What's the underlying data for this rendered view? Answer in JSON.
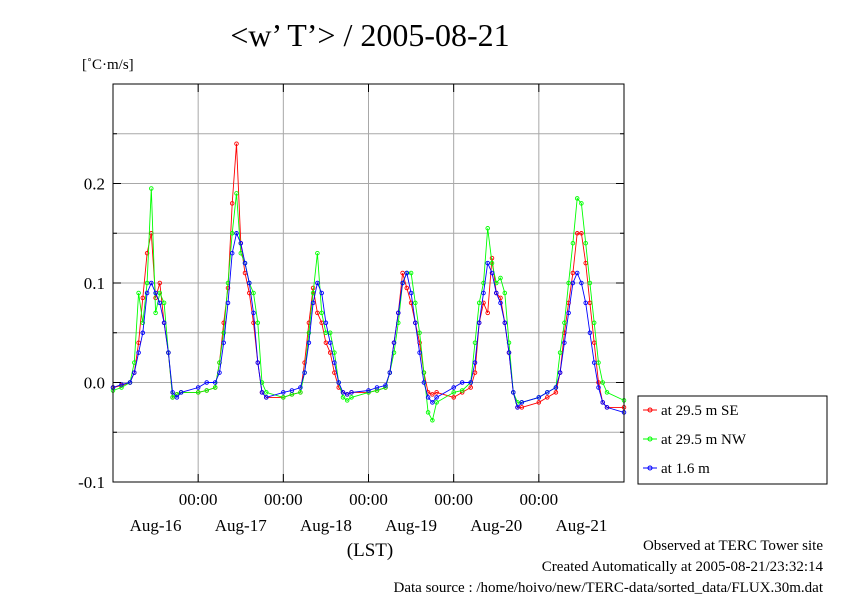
{
  "chart_data": {
    "type": "line",
    "title": "<w’ T’> / 2005-08-21",
    "ylabel": "[˚C·m/s]",
    "xlabel": "(LST)",
    "ylim": [
      -0.1,
      0.3
    ],
    "yticks": [
      "0.2",
      "0.1",
      "0.0",
      "-0.1"
    ],
    "ytick_values": [
      0.2,
      0.1,
      0.0,
      -0.1
    ],
    "xlim": [
      0,
      6
    ],
    "time_tick_label": "00:00",
    "time_tick_values": [
      1,
      2,
      3,
      4,
      5
    ],
    "day_labels": [
      "Aug-16",
      "Aug-17",
      "Aug-18",
      "Aug-19",
      "Aug-20",
      "Aug-21"
    ],
    "day_label_values": [
      0.5,
      1.5,
      2.5,
      3.5,
      4.5,
      5.5
    ],
    "grid": true,
    "legend_position": "right",
    "series": [
      {
        "name": "at 29.5 m SE",
        "color": "#ff0000",
        "x": [
          0.0,
          0.1,
          0.2,
          0.25,
          0.3,
          0.35,
          0.4,
          0.45,
          0.5,
          0.55,
          0.6,
          0.65,
          0.7,
          0.75,
          0.8,
          1.0,
          1.1,
          1.2,
          1.25,
          1.3,
          1.35,
          1.4,
          1.45,
          1.5,
          1.55,
          1.6,
          1.65,
          1.7,
          1.75,
          1.8,
          2.0,
          2.1,
          2.2,
          2.25,
          2.3,
          2.35,
          2.4,
          2.45,
          2.5,
          2.55,
          2.6,
          2.65,
          2.7,
          2.75,
          2.8,
          3.0,
          3.1,
          3.2,
          3.25,
          3.3,
          3.35,
          3.4,
          3.45,
          3.5,
          3.55,
          3.6,
          3.65,
          3.7,
          3.75,
          3.8,
          4.0,
          4.1,
          4.2,
          4.25,
          4.3,
          4.35,
          4.4,
          4.45,
          4.5,
          4.55,
          4.6,
          4.65,
          4.7,
          4.75,
          4.8,
          5.0,
          5.1,
          5.2,
          5.25,
          5.3,
          5.35,
          5.4,
          5.45,
          5.5,
          5.55,
          5.6,
          5.65,
          5.7,
          5.75,
          5.8,
          6.0
        ],
        "y": [
          -0.005,
          -0.003,
          0.0,
          0.01,
          0.04,
          0.085,
          0.13,
          0.15,
          0.085,
          0.1,
          0.06,
          0.03,
          -0.015,
          -0.012,
          -0.01,
          -0.01,
          -0.008,
          -0.005,
          0.02,
          0.06,
          0.095,
          0.18,
          0.24,
          0.14,
          0.11,
          0.09,
          0.06,
          0.02,
          -0.01,
          -0.015,
          -0.015,
          -0.012,
          -0.01,
          0.02,
          0.06,
          0.095,
          0.07,
          0.06,
          0.04,
          0.03,
          0.01,
          -0.005,
          -0.01,
          -0.012,
          -0.01,
          -0.01,
          -0.008,
          -0.005,
          0.01,
          0.04,
          0.07,
          0.11,
          0.095,
          0.08,
          0.06,
          0.04,
          0.01,
          -0.01,
          -0.012,
          -0.01,
          -0.015,
          -0.01,
          -0.005,
          0.01,
          0.06,
          0.08,
          0.07,
          0.125,
          0.09,
          0.085,
          0.06,
          0.03,
          -0.01,
          -0.025,
          -0.025,
          -0.02,
          -0.015,
          -0.01,
          0.01,
          0.05,
          0.08,
          0.11,
          0.15,
          0.15,
          0.12,
          0.08,
          0.04,
          0.0,
          -0.02,
          -0.025,
          -0.025
        ]
      },
      {
        "name": "at 29.5 m NW",
        "color": "#00ff00",
        "x": [
          0.0,
          0.1,
          0.2,
          0.25,
          0.3,
          0.35,
          0.4,
          0.45,
          0.5,
          0.55,
          0.6,
          0.65,
          0.7,
          0.75,
          0.8,
          1.0,
          1.1,
          1.2,
          1.25,
          1.3,
          1.35,
          1.4,
          1.45,
          1.5,
          1.55,
          1.6,
          1.65,
          1.7,
          1.75,
          1.8,
          2.0,
          2.1,
          2.2,
          2.25,
          2.3,
          2.35,
          2.4,
          2.45,
          2.5,
          2.55,
          2.6,
          2.65,
          2.7,
          2.75,
          2.8,
          3.0,
          3.1,
          3.2,
          3.25,
          3.3,
          3.35,
          3.4,
          3.45,
          3.5,
          3.55,
          3.6,
          3.65,
          3.7,
          3.75,
          3.8,
          4.0,
          4.1,
          4.2,
          4.25,
          4.3,
          4.35,
          4.4,
          4.45,
          4.5,
          4.55,
          4.6,
          4.65,
          4.7,
          4.75,
          4.8,
          5.0,
          5.1,
          5.2,
          5.25,
          5.3,
          5.35,
          5.4,
          5.45,
          5.5,
          5.55,
          5.6,
          5.65,
          5.7,
          5.75,
          5.8,
          6.0
        ],
        "y": [
          -0.008,
          -0.005,
          0.0,
          0.02,
          0.09,
          0.06,
          0.1,
          0.195,
          0.07,
          0.09,
          0.08,
          0.03,
          -0.015,
          -0.012,
          -0.01,
          -0.01,
          -0.008,
          -0.005,
          0.02,
          0.05,
          0.1,
          0.15,
          0.19,
          0.13,
          0.12,
          0.1,
          0.09,
          0.06,
          0.0,
          -0.01,
          -0.015,
          -0.012,
          -0.01,
          0.01,
          0.05,
          0.09,
          0.13,
          0.07,
          0.05,
          0.05,
          0.03,
          0.0,
          -0.015,
          -0.018,
          -0.015,
          -0.01,
          -0.008,
          -0.005,
          0.01,
          0.03,
          0.06,
          0.1,
          0.11,
          0.11,
          0.08,
          0.05,
          0.01,
          -0.03,
          -0.038,
          -0.02,
          -0.01,
          -0.008,
          0.0,
          0.04,
          0.08,
          0.1,
          0.155,
          0.12,
          0.1,
          0.105,
          0.09,
          0.04,
          -0.01,
          -0.02,
          -0.02,
          -0.015,
          -0.01,
          -0.005,
          0.03,
          0.06,
          0.1,
          0.14,
          0.185,
          0.18,
          0.14,
          0.1,
          0.06,
          0.02,
          0.0,
          -0.01,
          -0.018
        ]
      },
      {
        "name": "at 1.6 m",
        "color": "#0000ff",
        "x": [
          0.0,
          0.1,
          0.2,
          0.25,
          0.3,
          0.35,
          0.4,
          0.45,
          0.5,
          0.55,
          0.6,
          0.65,
          0.7,
          0.75,
          0.8,
          1.0,
          1.1,
          1.2,
          1.25,
          1.3,
          1.35,
          1.4,
          1.45,
          1.5,
          1.55,
          1.6,
          1.65,
          1.7,
          1.75,
          1.8,
          2.0,
          2.1,
          2.2,
          2.25,
          2.3,
          2.35,
          2.4,
          2.45,
          2.5,
          2.55,
          2.6,
          2.65,
          2.7,
          2.75,
          2.8,
          3.0,
          3.1,
          3.2,
          3.25,
          3.3,
          3.35,
          3.4,
          3.45,
          3.5,
          3.55,
          3.6,
          3.65,
          3.7,
          3.75,
          3.8,
          4.0,
          4.1,
          4.2,
          4.25,
          4.3,
          4.35,
          4.4,
          4.45,
          4.5,
          4.55,
          4.6,
          4.65,
          4.7,
          4.75,
          4.8,
          5.0,
          5.1,
          5.2,
          5.25,
          5.3,
          5.35,
          5.4,
          5.45,
          5.5,
          5.55,
          5.6,
          5.65,
          5.7,
          5.75,
          5.8,
          6.0
        ],
        "y": [
          -0.005,
          -0.002,
          0.0,
          0.01,
          0.03,
          0.05,
          0.09,
          0.1,
          0.09,
          0.08,
          0.06,
          0.03,
          -0.01,
          -0.015,
          -0.01,
          -0.005,
          0.0,
          0.0,
          0.01,
          0.04,
          0.08,
          0.13,
          0.15,
          0.14,
          0.12,
          0.1,
          0.07,
          0.02,
          -0.01,
          -0.015,
          -0.01,
          -0.008,
          -0.005,
          0.01,
          0.04,
          0.08,
          0.1,
          0.09,
          0.06,
          0.04,
          0.02,
          0.0,
          -0.01,
          -0.012,
          -0.01,
          -0.008,
          -0.005,
          -0.003,
          0.01,
          0.04,
          0.07,
          0.1,
          0.11,
          0.09,
          0.06,
          0.03,
          0.0,
          -0.015,
          -0.02,
          -0.015,
          -0.005,
          0.0,
          0.0,
          0.02,
          0.06,
          0.09,
          0.12,
          0.11,
          0.09,
          0.08,
          0.06,
          0.03,
          -0.01,
          -0.025,
          -0.02,
          -0.015,
          -0.01,
          -0.005,
          0.01,
          0.04,
          0.07,
          0.1,
          0.11,
          0.1,
          0.08,
          0.05,
          0.02,
          -0.005,
          -0.02,
          -0.025,
          -0.03
        ]
      }
    ]
  },
  "footer": {
    "observed": "Observed at TERC Tower site",
    "created": "Created Automatically at 2005-08-21/23:32:14",
    "source": "Data source : /home/hoivo/new/TERC-data/sorted_data/FLUX.30m.dat"
  }
}
